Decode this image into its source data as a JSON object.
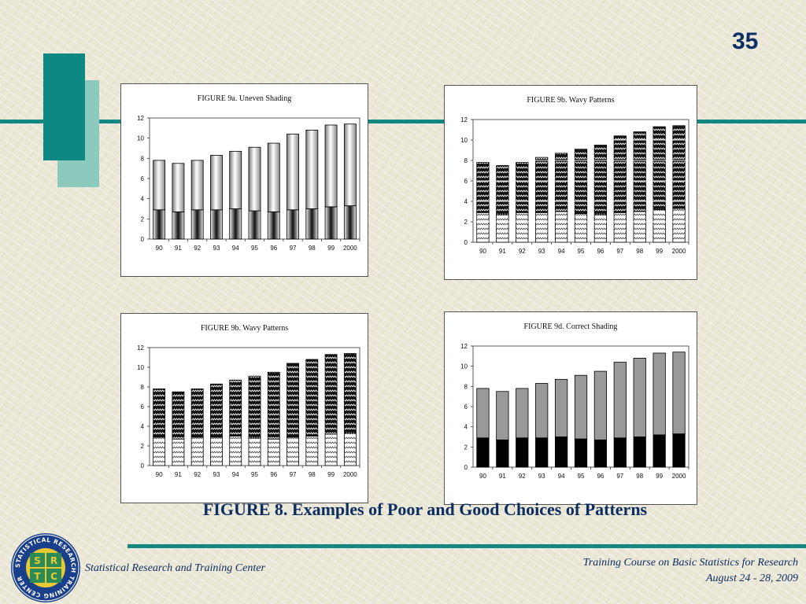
{
  "slide": {
    "number": "35",
    "main_title": "FIGURE 8.  Examples of Poor and Good Choices of Patterns",
    "organization": "Statistical Research and Training Center",
    "course_line1": "Training Course on Basic Statistics for Research",
    "course_line2": "August  24 - 28, 2009",
    "logo": {
      "ring_text": "STATISTICAL RESEARCH TRAINING CENTER",
      "letters": [
        "S",
        "R",
        "T",
        "C"
      ]
    }
  },
  "colors": {
    "teal": "#138883",
    "light_teal": "#8ccabd",
    "navy": "#0d2e63",
    "gray_bar": "#999999"
  },
  "chart_data": [
    {
      "type": "bar",
      "stacked": true,
      "pattern": "uneven-shading",
      "title": "FIGURE 9a.  Uneven Shading",
      "categories": [
        "90",
        "91",
        "92",
        "93",
        "94",
        "95",
        "96",
        "97",
        "98",
        "99",
        "2000"
      ],
      "ylim": [
        0,
        12
      ],
      "yticks": [
        0,
        2,
        4,
        6,
        8,
        10,
        12
      ],
      "grid": false,
      "series": [
        {
          "values": [
            2.9,
            2.7,
            2.9,
            2.9,
            3.0,
            2.8,
            2.7,
            2.9,
            3.0,
            3.2,
            3.3
          ]
        },
        {
          "values": [
            4.9,
            4.8,
            4.9,
            5.4,
            5.7,
            6.3,
            6.8,
            7.5,
            7.8,
            8.1,
            8.1
          ]
        }
      ]
    },
    {
      "type": "bar",
      "stacked": true,
      "pattern": "wavy",
      "title": "FIGURE 9b.  Wavy Patterns",
      "categories": [
        "90",
        "91",
        "92",
        "93",
        "94",
        "95",
        "96",
        "97",
        "98",
        "99",
        "2000"
      ],
      "ylim": [
        0,
        12
      ],
      "yticks": [
        0,
        2,
        4,
        6,
        8,
        10,
        12
      ],
      "grid": true,
      "series": [
        {
          "values": [
            2.9,
            2.7,
            2.9,
            2.9,
            3.0,
            2.8,
            2.7,
            2.9,
            3.0,
            3.2,
            3.3
          ]
        },
        {
          "values": [
            4.9,
            4.8,
            4.9,
            5.4,
            5.7,
            6.3,
            6.8,
            7.5,
            7.8,
            8.1,
            8.1
          ]
        }
      ]
    },
    {
      "type": "bar",
      "stacked": true,
      "pattern": "wavy",
      "title": "FIGURE 9b.  Wavy Patterns",
      "categories": [
        "90",
        "91",
        "92",
        "93",
        "94",
        "95",
        "96",
        "97",
        "98",
        "99",
        "2000"
      ],
      "ylim": [
        0,
        12
      ],
      "yticks": [
        0,
        2,
        4,
        6,
        8,
        10,
        12
      ],
      "grid": false,
      "series": [
        {
          "values": [
            2.9,
            2.7,
            2.9,
            2.9,
            3.0,
            2.8,
            2.7,
            2.9,
            3.0,
            3.2,
            3.3
          ]
        },
        {
          "values": [
            4.9,
            4.8,
            4.9,
            5.4,
            5.7,
            6.3,
            6.8,
            7.5,
            7.8,
            8.1,
            8.1
          ]
        }
      ]
    },
    {
      "type": "bar",
      "stacked": true,
      "pattern": "correct-shading",
      "title": "FIGURE 9d. Correct Shading",
      "categories": [
        "90",
        "91",
        "92",
        "93",
        "94",
        "95",
        "96",
        "97",
        "98",
        "99",
        "2000"
      ],
      "ylim": [
        0,
        12
      ],
      "yticks": [
        0,
        2,
        4,
        6,
        8,
        10,
        12
      ],
      "grid": false,
      "series": [
        {
          "values": [
            2.9,
            2.7,
            2.9,
            2.9,
            3.0,
            2.8,
            2.7,
            2.9,
            3.0,
            3.2,
            3.3
          ]
        },
        {
          "values": [
            4.9,
            4.8,
            4.9,
            5.4,
            5.7,
            6.3,
            6.8,
            7.5,
            7.8,
            8.1,
            8.1
          ]
        }
      ]
    }
  ]
}
